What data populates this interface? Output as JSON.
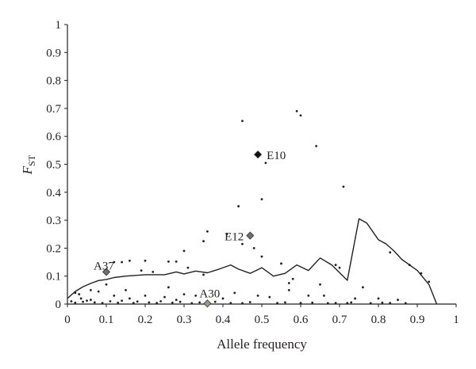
{
  "chart_data": {
    "type": "scatter",
    "xlabel": "Allele frequency",
    "ylabel_main": "F",
    "ylabel_sub": "ST",
    "xlim": [
      0,
      1
    ],
    "ylim": [
      0,
      1
    ],
    "xticks": [
      "0",
      "0.1",
      "0.2",
      "0.3",
      "0.4",
      "0.5",
      "0.6",
      "0.7",
      "0.8",
      "0.9",
      "1"
    ],
    "yticks": [
      "0",
      "0.1",
      "0.2",
      "0.3",
      "0.4",
      "0.5",
      "0.6",
      "0.7",
      "0.8",
      "0.9",
      "1"
    ],
    "grid": false,
    "colors": {
      "ink": "#231f20",
      "labeled_dark": "#111111",
      "labeled_gray": "#6f6f6f",
      "labeled_olive": "#9a9a7a"
    },
    "line": {
      "x": [
        0,
        0.02,
        0.04,
        0.06,
        0.08,
        0.1,
        0.12,
        0.15,
        0.2,
        0.25,
        0.28,
        0.3,
        0.33,
        0.36,
        0.39,
        0.42,
        0.44,
        0.47,
        0.5,
        0.53,
        0.56,
        0.59,
        0.62,
        0.65,
        0.68,
        0.72,
        0.75,
        0.77,
        0.8,
        0.82,
        0.84,
        0.86,
        0.88,
        0.9,
        0.93,
        0.95
      ],
      "y": [
        0.02,
        0.045,
        0.062,
        0.074,
        0.084,
        0.088,
        0.095,
        0.1,
        0.105,
        0.105,
        0.115,
        0.108,
        0.118,
        0.112,
        0.125,
        0.14,
        0.125,
        0.11,
        0.13,
        0.1,
        0.11,
        0.14,
        0.12,
        0.165,
        0.14,
        0.085,
        0.305,
        0.29,
        0.23,
        0.215,
        0.19,
        0.16,
        0.14,
        0.12,
        0.07,
        0
      ]
    },
    "labeled_points": [
      {
        "label": "E10",
        "x": 0.49,
        "y": 0.535,
        "style": "dark"
      },
      {
        "label": "E12",
        "x": 0.47,
        "y": 0.245,
        "style": "gray"
      },
      {
        "label": "A37",
        "x": 0.1,
        "y": 0.115,
        "style": "gray"
      },
      {
        "label": "A30",
        "x": 0.36,
        "y": 0.002,
        "style": "olive"
      }
    ],
    "points": [
      [
        0.59,
        0.69
      ],
      [
        0.6,
        0.675
      ],
      [
        0.45,
        0.655
      ],
      [
        0.64,
        0.565
      ],
      [
        0.51,
        0.505
      ],
      [
        0.71,
        0.42
      ],
      [
        0.5,
        0.375
      ],
      [
        0.44,
        0.35
      ],
      [
        0.36,
        0.26
      ],
      [
        0.41,
        0.25
      ],
      [
        0.35,
        0.225
      ],
      [
        0.45,
        0.215
      ],
      [
        0.48,
        0.2
      ],
      [
        0.3,
        0.19
      ],
      [
        0.5,
        0.17
      ],
      [
        0.16,
        0.155
      ],
      [
        0.2,
        0.155
      ],
      [
        0.26,
        0.152
      ],
      [
        0.28,
        0.152
      ],
      [
        0.12,
        0.15
      ],
      [
        0.14,
        0.15
      ],
      [
        0.31,
        0.13
      ],
      [
        0.55,
        0.145
      ],
      [
        0.69,
        0.14
      ],
      [
        0.7,
        0.13
      ],
      [
        0.83,
        0.185
      ],
      [
        0.88,
        0.14
      ],
      [
        0.91,
        0.11
      ],
      [
        0.93,
        0.08
      ],
      [
        0.19,
        0.12
      ],
      [
        0.22,
        0.115
      ],
      [
        0.35,
        0.105
      ],
      [
        0.58,
        0.09
      ],
      [
        0.65,
        0.07
      ],
      [
        0.57,
        0.075
      ],
      [
        0.57,
        0.05
      ],
      [
        0.76,
        0.06
      ],
      [
        0.02,
        0.04
      ],
      [
        0.03,
        0.035
      ],
      [
        0.06,
        0.05
      ],
      [
        0.08,
        0.045
      ],
      [
        0.12,
        0.03
      ],
      [
        0.16,
        0.02
      ],
      [
        0.2,
        0.03
      ],
      [
        0.25,
        0.025
      ],
      [
        0.3,
        0.035
      ],
      [
        0.33,
        0.03
      ],
      [
        0.4,
        0.02
      ],
      [
        0.43,
        0.04
      ],
      [
        0.49,
        0.03
      ],
      [
        0.52,
        0.025
      ],
      [
        0.62,
        0.03
      ],
      [
        0.66,
        0.03
      ],
      [
        0.74,
        0.02
      ],
      [
        0.8,
        0.02
      ],
      [
        0.85,
        0.015
      ],
      [
        0.01,
        0.01
      ],
      [
        0.02,
        0.005
      ],
      [
        0.04,
        0.008
      ],
      [
        0.05,
        0.012
      ],
      [
        0.07,
        0.006
      ],
      [
        0.09,
        0.004
      ],
      [
        0.11,
        0.01
      ],
      [
        0.13,
        0.005
      ],
      [
        0.14,
        0.012
      ],
      [
        0.17,
        0.004
      ],
      [
        0.18,
        0.009
      ],
      [
        0.21,
        0.006
      ],
      [
        0.23,
        0.004
      ],
      [
        0.24,
        0.01
      ],
      [
        0.27,
        0.005
      ],
      [
        0.29,
        0.008
      ],
      [
        0.32,
        0.003
      ],
      [
        0.34,
        0.006
      ],
      [
        0.38,
        0.008
      ],
      [
        0.42,
        0.004
      ],
      [
        0.45,
        0.003
      ],
      [
        0.47,
        0.007
      ],
      [
        0.54,
        0.004
      ],
      [
        0.56,
        0.006
      ],
      [
        0.6,
        0.004
      ],
      [
        0.63,
        0.005
      ],
      [
        0.67,
        0.003
      ],
      [
        0.69,
        0.004
      ],
      [
        0.72,
        0.004
      ],
      [
        0.73,
        0.006
      ],
      [
        0.78,
        0.003
      ],
      [
        0.81,
        0.005
      ],
      [
        0.83,
        0.004
      ],
      [
        0.87,
        0.003
      ],
      [
        0.15,
        0.05
      ],
      [
        0.26,
        0.06
      ],
      [
        0.1,
        0.07
      ],
      [
        0.06,
        0.015
      ],
      [
        0.035,
        0.02
      ],
      [
        0.28,
        0.015
      ]
    ]
  }
}
